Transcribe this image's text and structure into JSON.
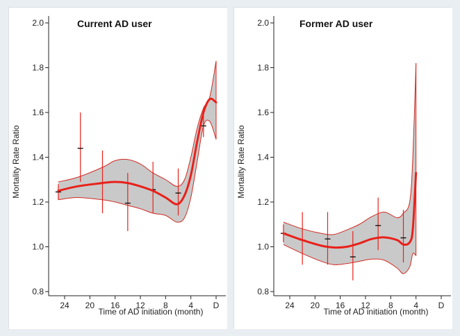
{
  "chart_data": [
    {
      "type": "line",
      "title": "Current AD user",
      "xlabel": "Time of AD initiation (month)",
      "ylabel": "Mortality Rate Ratio",
      "x_ticks": [
        "24",
        "20",
        "16",
        "12",
        "8",
        "4",
        "D"
      ],
      "y_ticks": [
        "0.8",
        "1.0",
        "1.2",
        "1.4",
        "1.6",
        "1.8",
        "2.0"
      ],
      "ylim": [
        0.8,
        2.0
      ],
      "x_axis_reversed": true,
      "grid": false,
      "colors": {
        "line": "#e8211a",
        "band": "#c9c9c9",
        "band_edge": "#d02a22",
        "marker": "#111111"
      },
      "series": [
        {
          "kind": "spline_fit",
          "points": [
            [
              25,
              1.25
            ],
            [
              22,
              1.27
            ],
            [
              18,
              1.285
            ],
            [
              16,
              1.29
            ],
            [
              14,
              1.285
            ],
            [
              12,
              1.27
            ],
            [
              10,
              1.25
            ],
            [
              8,
              1.22
            ],
            [
              6.2,
              1.19
            ],
            [
              5,
              1.23
            ],
            [
              4,
              1.32
            ],
            [
              3,
              1.47
            ],
            [
              2,
              1.6
            ],
            [
              1,
              1.66
            ],
            [
              0,
              1.645
            ]
          ],
          "upper": [
            [
              25,
              1.29
            ],
            [
              22,
              1.31
            ],
            [
              18,
              1.355
            ],
            [
              16,
              1.385
            ],
            [
              14,
              1.39
            ],
            [
              12,
              1.37
            ],
            [
              10,
              1.33
            ],
            [
              8,
              1.3
            ],
            [
              6.2,
              1.27
            ],
            [
              5,
              1.3
            ],
            [
              4,
              1.4
            ],
            [
              3,
              1.53
            ],
            [
              2,
              1.62
            ],
            [
              1,
              1.67
            ],
            [
              0,
              1.83
            ]
          ],
          "lower": [
            [
              25,
              1.21
            ],
            [
              22,
              1.22
            ],
            [
              18,
              1.21
            ],
            [
              16,
              1.2
            ],
            [
              14,
              1.185
            ],
            [
              12,
              1.17
            ],
            [
              10,
              1.15
            ],
            [
              8,
              1.14
            ],
            [
              6.2,
              1.11
            ],
            [
              5,
              1.13
            ],
            [
              4,
              1.22
            ],
            [
              3,
              1.38
            ],
            [
              2,
              1.54
            ],
            [
              1,
              1.56
            ],
            [
              0,
              1.48
            ]
          ]
        },
        {
          "kind": "point_estimates",
          "points": [
            {
              "x": 25,
              "y": 1.245,
              "lo": 1.21,
              "hi": 1.28
            },
            {
              "x": 21.5,
              "y": 1.44,
              "lo": 1.29,
              "hi": 1.6
            },
            {
              "x": 18,
              "y": 1.285,
              "lo": 1.15,
              "hi": 1.43
            },
            {
              "x": 14,
              "y": 1.195,
              "lo": 1.07,
              "hi": 1.33
            },
            {
              "x": 10,
              "y": 1.255,
              "lo": 1.15,
              "hi": 1.38
            },
            {
              "x": 6,
              "y": 1.24,
              "lo": 1.14,
              "hi": 1.35
            },
            {
              "x": 2,
              "y": 1.54,
              "lo": 1.49,
              "hi": 1.59
            }
          ]
        }
      ]
    },
    {
      "type": "line",
      "title": "Former AD user",
      "xlabel": "Time of AD initiation (month)",
      "ylabel": "Mortality Rate Ratio",
      "x_ticks": [
        "24",
        "20",
        "16",
        "12",
        "8",
        "4",
        "D"
      ],
      "y_ticks": [
        "0.8",
        "1.0",
        "1.2",
        "1.4",
        "1.6",
        "1.8",
        "2.0"
      ],
      "ylim": [
        0.8,
        2.0
      ],
      "x_axis_reversed": true,
      "grid": false,
      "colors": {
        "line": "#e8211a",
        "band": "#c9c9c9",
        "band_edge": "#d02a22",
        "marker": "#111111"
      },
      "series": [
        {
          "kind": "spline_fit",
          "points": [
            [
              25,
              1.06
            ],
            [
              22,
              1.03
            ],
            [
              19,
              1.005
            ],
            [
              17,
              0.997
            ],
            [
              15,
              1.0
            ],
            [
              13,
              1.015
            ],
            [
              11,
              1.035
            ],
            [
              9,
              1.042
            ],
            [
              7,
              1.03
            ],
            [
              6,
              1.01
            ],
            [
              5,
              1.02
            ],
            [
              4.5,
              1.08
            ],
            [
              4,
              1.33
            ]
          ],
          "upper": [
            [
              25,
              1.11
            ],
            [
              22,
              1.08
            ],
            [
              19,
              1.06
            ],
            [
              17,
              1.055
            ],
            [
              15,
              1.075
            ],
            [
              13,
              1.1
            ],
            [
              11,
              1.135
            ],
            [
              9,
              1.155
            ],
            [
              7,
              1.13
            ],
            [
              6,
              1.15
            ],
            [
              5,
              1.2
            ],
            [
              4.5,
              1.4
            ],
            [
              4,
              1.82
            ]
          ],
          "lower": [
            [
              25,
              1.01
            ],
            [
              22,
              0.97
            ],
            [
              19,
              0.935
            ],
            [
              17,
              0.92
            ],
            [
              15,
              0.925
            ],
            [
              13,
              0.935
            ],
            [
              11,
              0.945
            ],
            [
              9,
              0.94
            ],
            [
              7,
              0.905
            ],
            [
              6,
              0.88
            ],
            [
              5,
              0.91
            ],
            [
              4.5,
              0.97
            ],
            [
              4,
              0.96
            ]
          ]
        },
        {
          "kind": "point_estimates",
          "points": [
            {
              "x": 25,
              "y": 1.06,
              "lo": 1.02,
              "hi": 1.1
            },
            {
              "x": 22,
              "y": 1.03,
              "lo": 0.92,
              "hi": 1.155
            },
            {
              "x": 18,
              "y": 1.035,
              "lo": 0.92,
              "hi": 1.155
            },
            {
              "x": 14,
              "y": 0.955,
              "lo": 0.85,
              "hi": 1.07
            },
            {
              "x": 10,
              "y": 1.095,
              "lo": 0.985,
              "hi": 1.22
            },
            {
              "x": 6,
              "y": 1.04,
              "lo": 0.93,
              "hi": 1.165
            }
          ]
        }
      ]
    }
  ]
}
